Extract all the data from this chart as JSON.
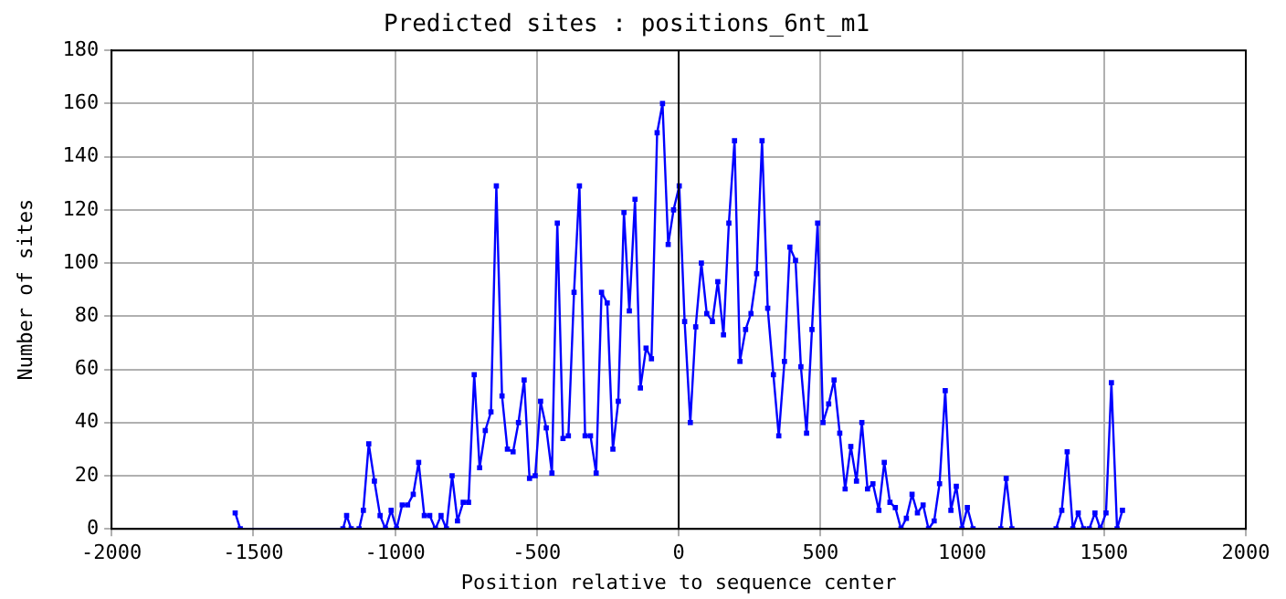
{
  "chart_data": {
    "type": "line",
    "title": "Predicted sites : positions_6nt_m1",
    "xlabel": "Position relative to sequence center",
    "ylabel": "Number of sites",
    "series": [
      {
        "color": "#0000ff",
        "x": [
          -1564,
          -1546,
          -1184,
          -1171,
          -1155,
          -1127,
          -1112,
          -1093,
          -1073,
          -1053,
          -1034,
          -1014,
          -995,
          -975,
          -956,
          -936,
          -917,
          -897,
          -878,
          -858,
          -838,
          -819,
          -799,
          -780,
          -760,
          -741,
          -721,
          -702,
          -682,
          -662,
          -643,
          -623,
          -604,
          -584,
          -565,
          -545,
          -526,
          -506,
          -487,
          -467,
          -447,
          -428,
          -408,
          -389,
          -369,
          -350,
          -330,
          -311,
          -291,
          -272,
          -252,
          -232,
          -213,
          -193,
          -174,
          -154,
          -135,
          -115,
          -96,
          -76,
          -57,
          -37,
          -18,
          2,
          21,
          41,
          60,
          80,
          99,
          119,
          138,
          158,
          177,
          197,
          216,
          236,
          255,
          275,
          294,
          314,
          334,
          353,
          373,
          392,
          412,
          431,
          451,
          470,
          490,
          509,
          529,
          548,
          568,
          587,
          607,
          627,
          646,
          666,
          685,
          706,
          725,
          745,
          764,
          784,
          803,
          823,
          842,
          862,
          881,
          901,
          920,
          940,
          960,
          979,
          999,
          1018,
          1038,
          1136,
          1155,
          1175,
          1331,
          1351,
          1370,
          1390,
          1409,
          1428,
          1448,
          1468,
          1487,
          1507,
          1526,
          1546,
          1565
        ],
        "values": [
          6,
          0,
          0,
          5,
          0,
          0,
          7,
          32,
          18,
          5,
          0,
          7,
          0,
          9,
          9,
          13,
          25,
          5,
          5,
          0,
          5,
          0,
          20,
          3,
          10,
          10,
          58,
          23,
          37,
          44,
          129,
          50,
          30,
          29,
          40,
          56,
          19,
          20,
          48,
          38,
          21,
          115,
          34,
          35,
          89,
          129,
          35,
          35,
          21,
          89,
          85,
          30,
          48,
          119,
          82,
          124,
          53,
          68,
          64,
          149,
          160,
          107,
          120,
          129,
          78,
          40,
          76,
          100,
          81,
          78,
          93,
          73,
          115,
          146,
          63,
          75,
          81,
          96,
          146,
          83,
          58,
          35,
          63,
          106,
          101,
          61,
          36,
          75,
          115,
          40,
          47,
          56,
          36,
          15,
          31,
          18,
          40,
          15,
          17,
          7,
          25,
          10,
          8,
          0,
          4,
          13,
          6,
          9,
          0,
          3,
          17,
          52,
          7,
          16,
          0,
          8,
          0,
          0,
          19,
          0,
          0,
          7,
          29,
          0,
          6,
          0,
          0,
          6,
          0,
          6,
          55,
          0,
          7
        ]
      }
    ],
    "xlim": [
      -2000,
      2000
    ],
    "xticks": [
      -2000,
      -1500,
      -1000,
      -500,
      0,
      500,
      1000,
      1500,
      2000
    ],
    "ylim": [
      0,
      180
    ],
    "yticks": [
      0,
      20,
      40,
      60,
      80,
      100,
      120,
      140,
      160,
      180
    ],
    "grid": true,
    "legend": false,
    "marker": "square",
    "line_style": "solid",
    "ref_lines": [
      {
        "axis": "x",
        "value": 0,
        "color": "#000000"
      }
    ]
  }
}
